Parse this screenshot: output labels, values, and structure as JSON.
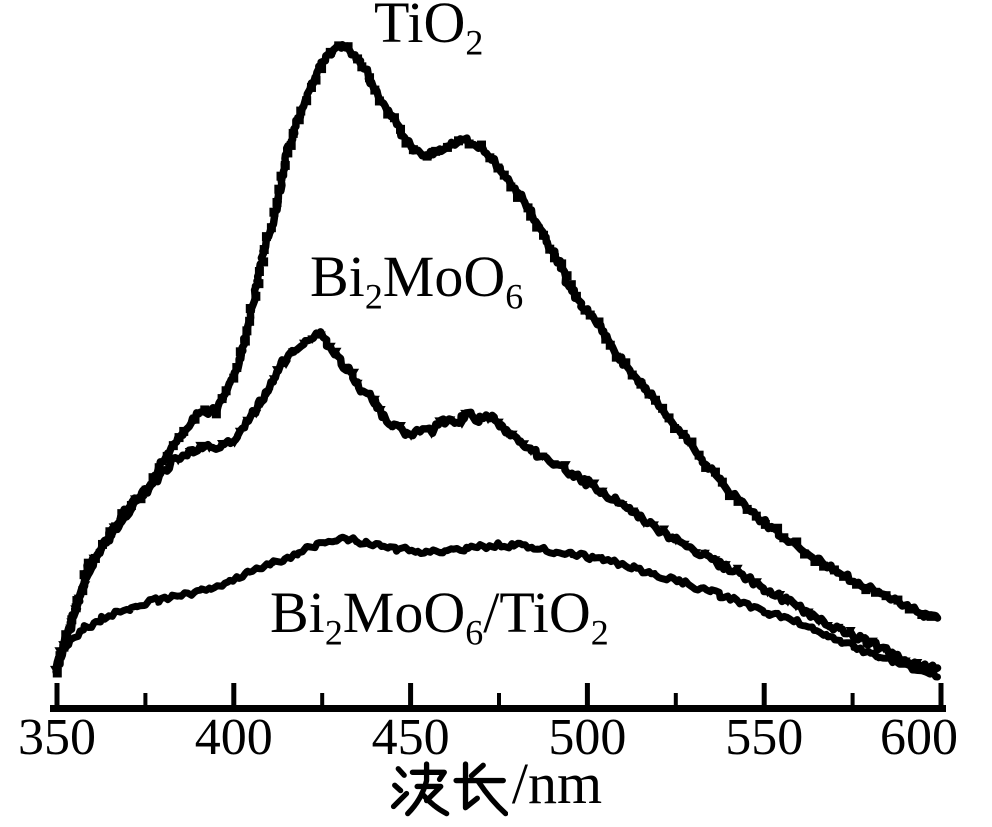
{
  "figure": {
    "background_color": "#ffffff",
    "ink_color": "#000000"
  },
  "chart_data": {
    "type": "line",
    "title": "",
    "xlabel": "波长/nm",
    "ylabel": "",
    "x_range": [
      350,
      600
    ],
    "x_ticks": [
      "350",
      "400",
      "450",
      "500",
      "550",
      "600"
    ],
    "x_tick_values": [
      350,
      400,
      450,
      500,
      550,
      600
    ],
    "x_minor_tick_values": [
      375,
      425,
      475,
      525,
      575
    ],
    "y_axis_shown": false,
    "grid": false,
    "legend_position": "inline-annotations",
    "intensity_units": "arbitrary",
    "series": [
      {
        "name": "TiO2",
        "label": "TiO₂",
        "marker": "square",
        "color": "#000000",
        "points": [
          [
            350,
            40
          ],
          [
            355,
            95
          ],
          [
            359,
            145
          ],
          [
            364,
            170
          ],
          [
            369,
            198
          ],
          [
            375,
            220
          ],
          [
            380,
            248
          ],
          [
            386,
            280
          ],
          [
            390,
            297
          ],
          [
            395,
            300
          ],
          [
            398,
            318
          ],
          [
            402,
            352
          ],
          [
            405,
            400
          ],
          [
            408,
            452
          ],
          [
            412,
            498
          ],
          [
            415,
            558
          ],
          [
            419,
            598
          ],
          [
            422,
            625
          ],
          [
            425,
            648
          ],
          [
            429,
            660
          ],
          [
            431,
            665
          ],
          [
            434,
            655
          ],
          [
            438,
            635
          ],
          [
            441,
            612
          ],
          [
            445,
            592
          ],
          [
            448,
            574
          ],
          [
            451,
            560
          ],
          [
            455,
            554
          ],
          [
            458,
            560
          ],
          [
            461,
            566
          ],
          [
            465,
            570
          ],
          [
            469,
            564
          ],
          [
            473,
            552
          ],
          [
            477,
            532
          ],
          [
            482,
            510
          ],
          [
            486,
            485
          ],
          [
            491,
            455
          ],
          [
            495,
            422
          ],
          [
            500,
            398
          ],
          [
            504,
            380
          ],
          [
            509,
            352
          ],
          [
            515,
            328
          ],
          [
            520,
            305
          ],
          [
            525,
            282
          ],
          [
            530,
            262
          ],
          [
            535,
            240
          ],
          [
            540,
            220
          ],
          [
            545,
            202
          ],
          [
            550,
            188
          ],
          [
            555,
            174
          ],
          [
            560,
            162
          ],
          [
            565,
            150
          ],
          [
            570,
            140
          ],
          [
            575,
            130
          ],
          [
            581,
            120
          ],
          [
            586,
            110
          ],
          [
            591,
            102
          ],
          [
            595,
            96
          ],
          [
            599,
            92
          ]
        ]
      },
      {
        "name": "Bi2MoO6",
        "label": "Bi₂MoO₆",
        "marker": "triangle-down",
        "color": "#000000",
        "points": [
          [
            350,
            45
          ],
          [
            354,
            88
          ],
          [
            358,
            132
          ],
          [
            362,
            160
          ],
          [
            367,
            182
          ],
          [
            372,
            205
          ],
          [
            377,
            227
          ],
          [
            382,
            247
          ],
          [
            388,
            258
          ],
          [
            392,
            265
          ],
          [
            396,
            264
          ],
          [
            399,
            268
          ],
          [
            403,
            285
          ],
          [
            407,
            305
          ],
          [
            411,
            328
          ],
          [
            414,
            348
          ],
          [
            418,
            362
          ],
          [
            421,
            370
          ],
          [
            424,
            377
          ],
          [
            426,
            368
          ],
          [
            429,
            355
          ],
          [
            433,
            338
          ],
          [
            436,
            320
          ],
          [
            439,
            312
          ],
          [
            442,
            295
          ],
          [
            446,
            282
          ],
          [
            449,
            274
          ],
          [
            452,
            282
          ],
          [
            456,
            278
          ],
          [
            459,
            290
          ],
          [
            463,
            285
          ],
          [
            466,
            298
          ],
          [
            469,
            290
          ],
          [
            473,
            295
          ],
          [
            476,
            282
          ],
          [
            480,
            272
          ],
          [
            483,
            262
          ],
          [
            488,
            252
          ],
          [
            492,
            244
          ],
          [
            496,
            235
          ],
          [
            501,
            225
          ],
          [
            506,
            215
          ],
          [
            511,
            202
          ],
          [
            516,
            190
          ],
          [
            521,
            178
          ],
          [
            526,
            168
          ],
          [
            531,
            158
          ],
          [
            536,
            148
          ],
          [
            541,
            140
          ],
          [
            546,
            130
          ],
          [
            551,
            120
          ],
          [
            556,
            110
          ],
          [
            561,
            100
          ],
          [
            566,
            90
          ],
          [
            572,
            80
          ],
          [
            577,
            72
          ],
          [
            582,
            63
          ],
          [
            587,
            55
          ],
          [
            592,
            48
          ],
          [
            596,
            42
          ],
          [
            599,
            42
          ]
        ]
      },
      {
        "name": "Bi2MoO6/TiO2",
        "label": "Bi₂MoO₆/TiO₂",
        "marker": "dot",
        "color": "#000000",
        "points": [
          [
            350,
            50
          ],
          [
            354,
            70
          ],
          [
            358,
            82
          ],
          [
            362,
            90
          ],
          [
            367,
            98
          ],
          [
            372,
            104
          ],
          [
            377,
            109
          ],
          [
            382,
            113
          ],
          [
            388,
            116
          ],
          [
            393,
            122
          ],
          [
            399,
            129
          ],
          [
            404,
            137
          ],
          [
            410,
            146
          ],
          [
            416,
            154
          ],
          [
            421,
            162
          ],
          [
            426,
            169
          ],
          [
            431,
            172
          ],
          [
            436,
            168
          ],
          [
            441,
            164
          ],
          [
            447,
            161
          ],
          [
            452,
            159
          ],
          [
            458,
            158
          ],
          [
            464,
            160
          ],
          [
            469,
            163
          ],
          [
            475,
            165
          ],
          [
            481,
            164
          ],
          [
            486,
            161
          ],
          [
            492,
            158
          ],
          [
            498,
            155
          ],
          [
            503,
            151
          ],
          [
            509,
            146
          ],
          [
            514,
            141
          ],
          [
            520,
            135
          ],
          [
            526,
            129
          ],
          [
            531,
            122
          ],
          [
            537,
            116
          ],
          [
            542,
            109
          ],
          [
            548,
            102
          ],
          [
            554,
            94
          ],
          [
            560,
            87
          ],
          [
            565,
            79
          ],
          [
            571,
            70
          ],
          [
            577,
            61
          ],
          [
            582,
            54
          ],
          [
            588,
            47
          ],
          [
            593,
            41
          ],
          [
            597,
            36
          ],
          [
            599,
            33
          ]
        ]
      }
    ]
  }
}
